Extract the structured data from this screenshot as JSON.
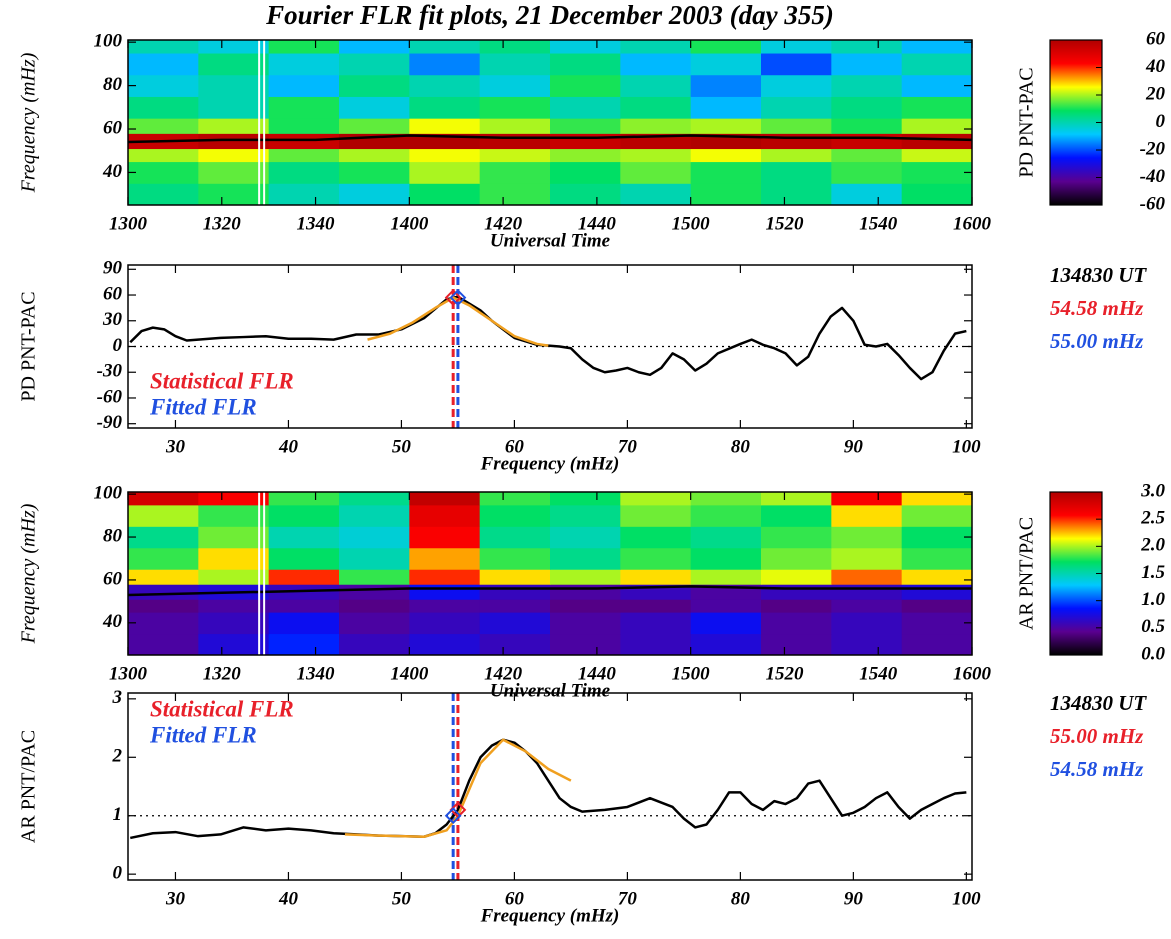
{
  "chart_data": [
    {
      "type": "heatmap",
      "title": "Fourier FLR fit plots, 21 December 2003 (day 355)",
      "x_label": "Universal Time",
      "y_label": "Frequency (mHz)",
      "colorbar_label": "PD PNT-PAC",
      "xlim": [
        780,
        960
      ],
      "ylim": [
        25,
        101
      ],
      "xticks": [
        {
          "value": 780,
          "label": "1300"
        },
        {
          "value": 800,
          "label": "1320"
        },
        {
          "value": 820,
          "label": "1340"
        },
        {
          "value": 840,
          "label": "1400"
        },
        {
          "value": 860,
          "label": "1420"
        },
        {
          "value": 880,
          "label": "1440"
        },
        {
          "value": 900,
          "label": "1500"
        },
        {
          "value": 920,
          "label": "1520"
        },
        {
          "value": 940,
          "label": "1540"
        },
        {
          "value": 960,
          "label": "1600"
        }
      ],
      "yticks": [
        40,
        60,
        80,
        100
      ],
      "xbins": [
        780,
        795,
        810,
        825,
        840,
        855,
        870,
        885,
        900,
        915,
        930,
        945,
        960
      ],
      "ybins": [
        25,
        35,
        45,
        51,
        58,
        65,
        75,
        85,
        95,
        101
      ],
      "z": [
        [
          5,
          10,
          0,
          -5,
          8,
          12,
          5,
          0,
          10,
          5,
          -5,
          8
        ],
        [
          10,
          15,
          5,
          10,
          20,
          12,
          8,
          15,
          10,
          5,
          12,
          10
        ],
        [
          20,
          25,
          15,
          20,
          25,
          22,
          18,
          20,
          25,
          20,
          15,
          22
        ],
        [
          55,
          58,
          55,
          60,
          60,
          58,
          55,
          58,
          60,
          58,
          55,
          58
        ],
        [
          15,
          20,
          10,
          15,
          25,
          20,
          12,
          18,
          20,
          15,
          10,
          20
        ],
        [
          5,
          0,
          10,
          -5,
          5,
          10,
          0,
          5,
          -10,
          0,
          5,
          10
        ],
        [
          -5,
          0,
          -10,
          5,
          0,
          -5,
          10,
          0,
          -15,
          -5,
          0,
          -10
        ],
        [
          -10,
          5,
          -5,
          0,
          -15,
          0,
          5,
          -10,
          -5,
          -20,
          -10,
          0
        ],
        [
          0,
          -5,
          10,
          -10,
          0,
          5,
          -5,
          0,
          10,
          -5,
          0,
          -10
        ]
      ],
      "ridge": {
        "x": [
          780,
          800,
          820,
          840,
          860,
          880,
          900,
          920,
          940,
          960
        ],
        "y": [
          54,
          55,
          55,
          57,
          56,
          56,
          57,
          56,
          56,
          55
        ],
        "color": "#000000"
      },
      "time_marker": 808.5,
      "clim": [
        -60,
        60
      ],
      "cticks": [
        -60,
        -40,
        -20,
        0,
        20,
        40,
        60
      ],
      "colormap": [
        "#000000",
        "#5a0090",
        "#0010ff",
        "#00c8ff",
        "#00e060",
        "#ffff00",
        "#ff0000",
        "#b00000"
      ]
    },
    {
      "type": "line",
      "x_label": "Frequency (mHz)",
      "y_label": "PD PNT-PAC",
      "xlim": [
        25.8,
        100.5
      ],
      "ylim": [
        -95,
        95
      ],
      "xticks": [
        30,
        40,
        50,
        60,
        70,
        80,
        90,
        100
      ],
      "yticks": [
        -90,
        -60,
        -30,
        0,
        30,
        60,
        90
      ],
      "reference_line": 0,
      "series": [
        {
          "color": "#000000",
          "x": [
            26,
            27,
            28,
            29,
            30,
            31,
            32,
            34,
            36,
            38,
            40,
            42,
            44,
            46,
            48,
            50,
            52,
            54,
            55,
            56,
            57,
            58,
            59,
            60,
            62,
            64,
            65,
            66,
            67,
            68,
            69,
            70,
            71,
            72,
            73,
            74,
            75,
            76,
            77,
            78,
            80,
            81,
            82,
            83,
            84,
            85,
            86,
            87,
            88,
            89,
            90,
            91,
            92,
            93,
            94,
            95,
            96,
            97,
            98,
            99,
            100
          ],
          "values": [
            5,
            18,
            22,
            20,
            12,
            7,
            8,
            10,
            11,
            12,
            9,
            9,
            8,
            14,
            14,
            20,
            33,
            55,
            58,
            50,
            42,
            30,
            20,
            10,
            2,
            0,
            -2,
            -15,
            -25,
            -30,
            -28,
            -25,
            -30,
            -33,
            -25,
            -8,
            -15,
            -28,
            -20,
            -8,
            3,
            8,
            2,
            -2,
            -8,
            -22,
            -12,
            15,
            35,
            45,
            30,
            2,
            0,
            3,
            -10,
            -25,
            -38,
            -30,
            -5,
            15,
            18
          ]
        },
        {
          "color": "#f0a020",
          "x": [
            47,
            49,
            51,
            53,
            54.6,
            56,
            58,
            60,
            62,
            63
          ],
          "values": [
            8,
            15,
            28,
            45,
            57,
            48,
            30,
            12,
            3,
            1
          ]
        }
      ],
      "vlines": [
        {
          "name": "Statistical FLR",
          "x": 54.58,
          "y": 57,
          "color": "#e8202a"
        },
        {
          "name": "Fitted FLR",
          "x": 55.0,
          "y": 57,
          "color": "#2050e0"
        }
      ],
      "annotations": [
        {
          "text": "134830 UT",
          "color": "#000000"
        },
        {
          "text": "54.58 mHz",
          "color": "#e8202a"
        },
        {
          "text": "55.00 mHz",
          "color": "#2050e0"
        }
      ]
    },
    {
      "type": "heatmap",
      "x_label": "Universal Time",
      "y_label": "Frequency (mHz)",
      "colorbar_label": "AR PNT/PAC",
      "xlim": [
        780,
        960
      ],
      "ylim": [
        25,
        101
      ],
      "xticks": [
        {
          "value": 780,
          "label": "1300"
        },
        {
          "value": 800,
          "label": "1320"
        },
        {
          "value": 820,
          "label": "1340"
        },
        {
          "value": 840,
          "label": "1400"
        },
        {
          "value": 860,
          "label": "1420"
        },
        {
          "value": 880,
          "label": "1440"
        },
        {
          "value": 900,
          "label": "1500"
        },
        {
          "value": 920,
          "label": "1520"
        },
        {
          "value": 940,
          "label": "1540"
        },
        {
          "value": 960,
          "label": "1600"
        }
      ],
      "yticks": [
        40,
        60,
        80,
        100
      ],
      "xbins": [
        780,
        795,
        810,
        825,
        840,
        855,
        870,
        885,
        900,
        915,
        930,
        945,
        960
      ],
      "ybins": [
        25,
        35,
        45,
        51,
        58,
        65,
        75,
        85,
        95,
        101
      ],
      "z": [
        [
          0.5,
          0.7,
          0.9,
          0.6,
          0.7,
          0.6,
          0.5,
          0.6,
          0.7,
          0.5,
          0.6,
          0.5
        ],
        [
          0.5,
          0.6,
          0.8,
          0.5,
          0.6,
          0.7,
          0.5,
          0.6,
          0.8,
          0.5,
          0.6,
          0.5
        ],
        [
          0.4,
          0.5,
          0.5,
          0.4,
          0.5,
          0.5,
          0.4,
          0.4,
          0.5,
          0.4,
          0.5,
          0.4
        ],
        [
          0.6,
          0.7,
          0.6,
          0.5,
          0.8,
          0.6,
          0.5,
          0.6,
          0.5,
          0.6,
          0.6,
          0.7
        ],
        [
          2.2,
          2.0,
          2.5,
          1.8,
          2.5,
          2.2,
          2.0,
          2.2,
          2.0,
          2.1,
          2.4,
          2.2
        ],
        [
          1.8,
          2.2,
          1.7,
          1.5,
          2.3,
          1.8,
          1.6,
          1.8,
          1.7,
          1.9,
          2.0,
          1.8
        ],
        [
          1.6,
          1.9,
          1.5,
          1.4,
          2.6,
          1.6,
          1.5,
          1.7,
          1.6,
          1.8,
          1.9,
          1.7
        ],
        [
          2.0,
          1.8,
          1.7,
          1.5,
          2.7,
          1.7,
          1.6,
          1.9,
          1.8,
          1.7,
          2.2,
          1.9
        ],
        [
          2.8,
          2.6,
          1.8,
          1.6,
          2.9,
          1.8,
          1.7,
          2.0,
          1.9,
          2.0,
          2.6,
          2.2
        ]
      ],
      "ridge": {
        "x": [
          780,
          800,
          820,
          840,
          860,
          880,
          900,
          920,
          940,
          960
        ],
        "y": [
          53,
          54,
          55,
          56,
          56,
          56,
          57,
          56,
          56,
          56
        ],
        "color": "#000000"
      },
      "time_marker": 808.5,
      "clim": [
        0,
        3
      ],
      "cticks": [
        {
          "value": 0,
          "label": "0.0"
        },
        0.5,
        {
          "value": 1,
          "label": "1.0"
        },
        1.5,
        {
          "value": 2,
          "label": "2.0"
        },
        2.5,
        {
          "value": 3,
          "label": "3.0"
        }
      ],
      "colormap": [
        "#000000",
        "#5a0090",
        "#0010ff",
        "#00c8ff",
        "#00e060",
        "#ffff00",
        "#ff0000",
        "#b00000"
      ]
    },
    {
      "type": "line",
      "x_label": "Frequency (mHz)",
      "y_label": "AR PNT/PAC",
      "xlim": [
        25.8,
        100.5
      ],
      "ylim": [
        -0.1,
        3.1
      ],
      "xticks": [
        30,
        40,
        50,
        60,
        70,
        80,
        90,
        100
      ],
      "yticks": [
        0,
        1,
        2,
        3
      ],
      "reference_line": 1,
      "series": [
        {
          "color": "#000000",
          "x": [
            26,
            28,
            30,
            32,
            34,
            36,
            38,
            40,
            42,
            44,
            46,
            48,
            50,
            52,
            53,
            54,
            55,
            56,
            57,
            58,
            59,
            60,
            61,
            62,
            63,
            64,
            65,
            66,
            68,
            70,
            72,
            74,
            75,
            76,
            77,
            78,
            79,
            80,
            81,
            82,
            83,
            84,
            85,
            86,
            87,
            88,
            89,
            90,
            91,
            92,
            93,
            94,
            95,
            96,
            97,
            98,
            99,
            100
          ],
          "values": [
            0.62,
            0.7,
            0.72,
            0.65,
            0.68,
            0.8,
            0.75,
            0.78,
            0.75,
            0.7,
            0.68,
            0.66,
            0.65,
            0.64,
            0.7,
            0.85,
            1.1,
            1.6,
            2.0,
            2.2,
            2.3,
            2.25,
            2.1,
            1.9,
            1.6,
            1.3,
            1.15,
            1.07,
            1.1,
            1.15,
            1.3,
            1.15,
            0.95,
            0.8,
            0.85,
            1.1,
            1.4,
            1.4,
            1.2,
            1.1,
            1.25,
            1.2,
            1.3,
            1.55,
            1.6,
            1.3,
            1.0,
            1.05,
            1.15,
            1.3,
            1.4,
            1.15,
            0.95,
            1.1,
            1.2,
            1.3,
            1.38,
            1.4
          ]
        },
        {
          "color": "#f0a020",
          "x": [
            45,
            48,
            52,
            54,
            55,
            57,
            59,
            61,
            63,
            65
          ],
          "values": [
            0.68,
            0.66,
            0.64,
            0.75,
            1.0,
            1.9,
            2.3,
            2.1,
            1.8,
            1.6
          ]
        }
      ],
      "vlines": [
        {
          "name": "Statistical FLR",
          "x": 55.0,
          "y": 1.1,
          "color": "#e8202a"
        },
        {
          "name": "Fitted FLR",
          "x": 54.58,
          "y": 1.0,
          "color": "#2050e0"
        }
      ],
      "annotations": [
        {
          "text": "134830 UT",
          "color": "#000000"
        },
        {
          "text": "55.00 mHz",
          "color": "#e8202a"
        },
        {
          "text": "54.58 mHz",
          "color": "#2050e0"
        }
      ]
    }
  ]
}
